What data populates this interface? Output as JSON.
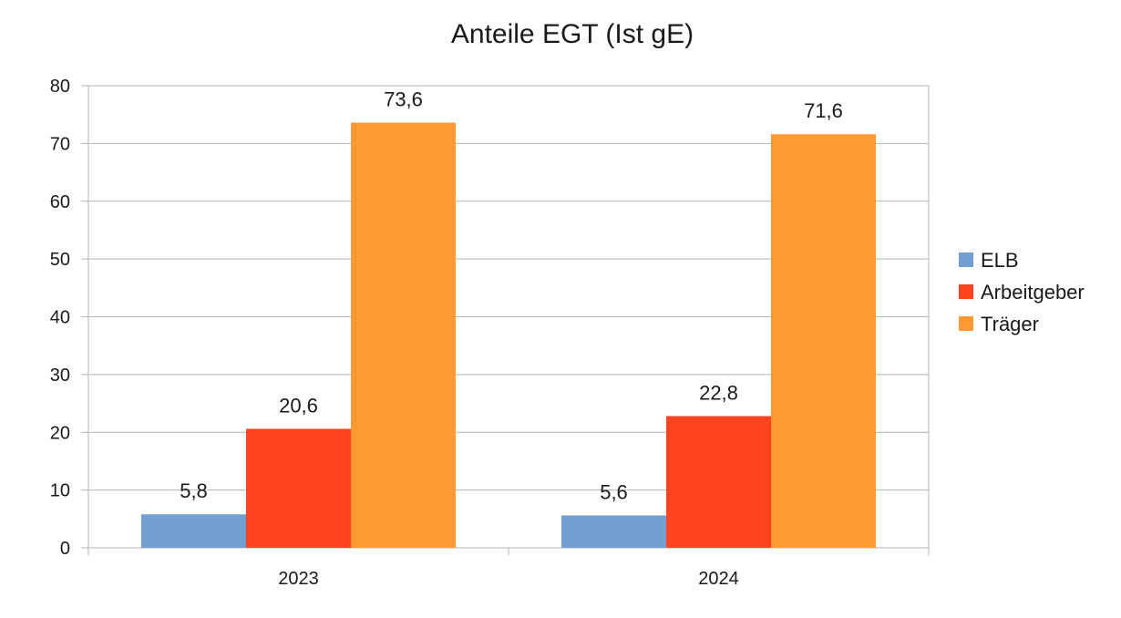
{
  "chart_data": {
    "type": "bar",
    "title": "Anteile EGT (Ist gE)",
    "xlabel": "",
    "ylabel": "",
    "categories": [
      "2023",
      "2024"
    ],
    "series": [
      {
        "name": "ELB",
        "color": "#729fcf",
        "values": [
          5.8,
          5.6
        ],
        "labels": [
          "5,8",
          "5,6"
        ]
      },
      {
        "name": "Arbeitgeber",
        "color": "#ff4422",
        "values": [
          20.6,
          22.8
        ],
        "labels": [
          "20,6",
          "22,8"
        ]
      },
      {
        "name": "Träger",
        "color": "#ff9933",
        "values": [
          73.6,
          71.6
        ],
        "labels": [
          "73,6",
          "71,6"
        ]
      }
    ],
    "ylim": [
      0,
      80
    ],
    "yticks": [
      "0",
      "10",
      "20",
      "30",
      "40",
      "50",
      "60",
      "70",
      "80"
    ],
    "grid": true,
    "legend_position": "right"
  }
}
